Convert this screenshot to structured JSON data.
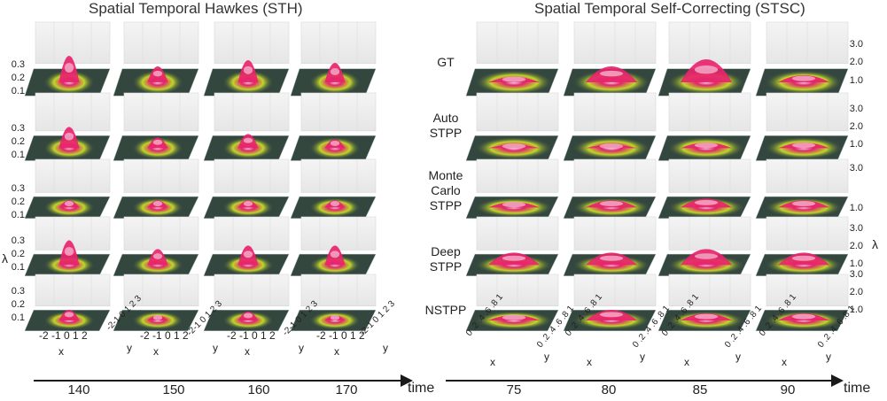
{
  "titles": {
    "left": "Spatial Temporal Hawkes (STH)",
    "right": "Spatial Temporal Self-Correcting (STSC)"
  },
  "row_labels": [
    [
      "GT"
    ],
    [
      "Auto",
      "STPP"
    ],
    [
      "Monte",
      "Carlo",
      "STPP"
    ],
    [
      "Deep",
      "STPP"
    ],
    [
      "NSTPP"
    ]
  ],
  "left_axis": {
    "ylabel": "λ",
    "ticks": [
      "0.3",
      "0.2",
      "0.1"
    ]
  },
  "right_axis": {
    "ylabel": "λ",
    "ticks": [
      "3.0",
      "2.0",
      "1.0"
    ]
  },
  "left_times": [
    "140",
    "150",
    "160",
    "170"
  ],
  "right_times": [
    "75",
    "80",
    "85",
    "90"
  ],
  "time_label": "time",
  "left_bottom_axes": {
    "x_label": "x",
    "y_label": "y",
    "x_ticks": "-2 -1 0 1 2",
    "y_ticks": "-2-1 0 1 2 3"
  },
  "right_bottom_axes": {
    "x_label": "x",
    "y_label": "y",
    "x_ticks": "0 .2 .4 .6 .8 1",
    "y_ticks": "0 .2 .4 .6 .8 1"
  },
  "colors": {
    "peak": "#e8246c",
    "mid": "#c7dd2a",
    "base": "#34473f"
  }
}
